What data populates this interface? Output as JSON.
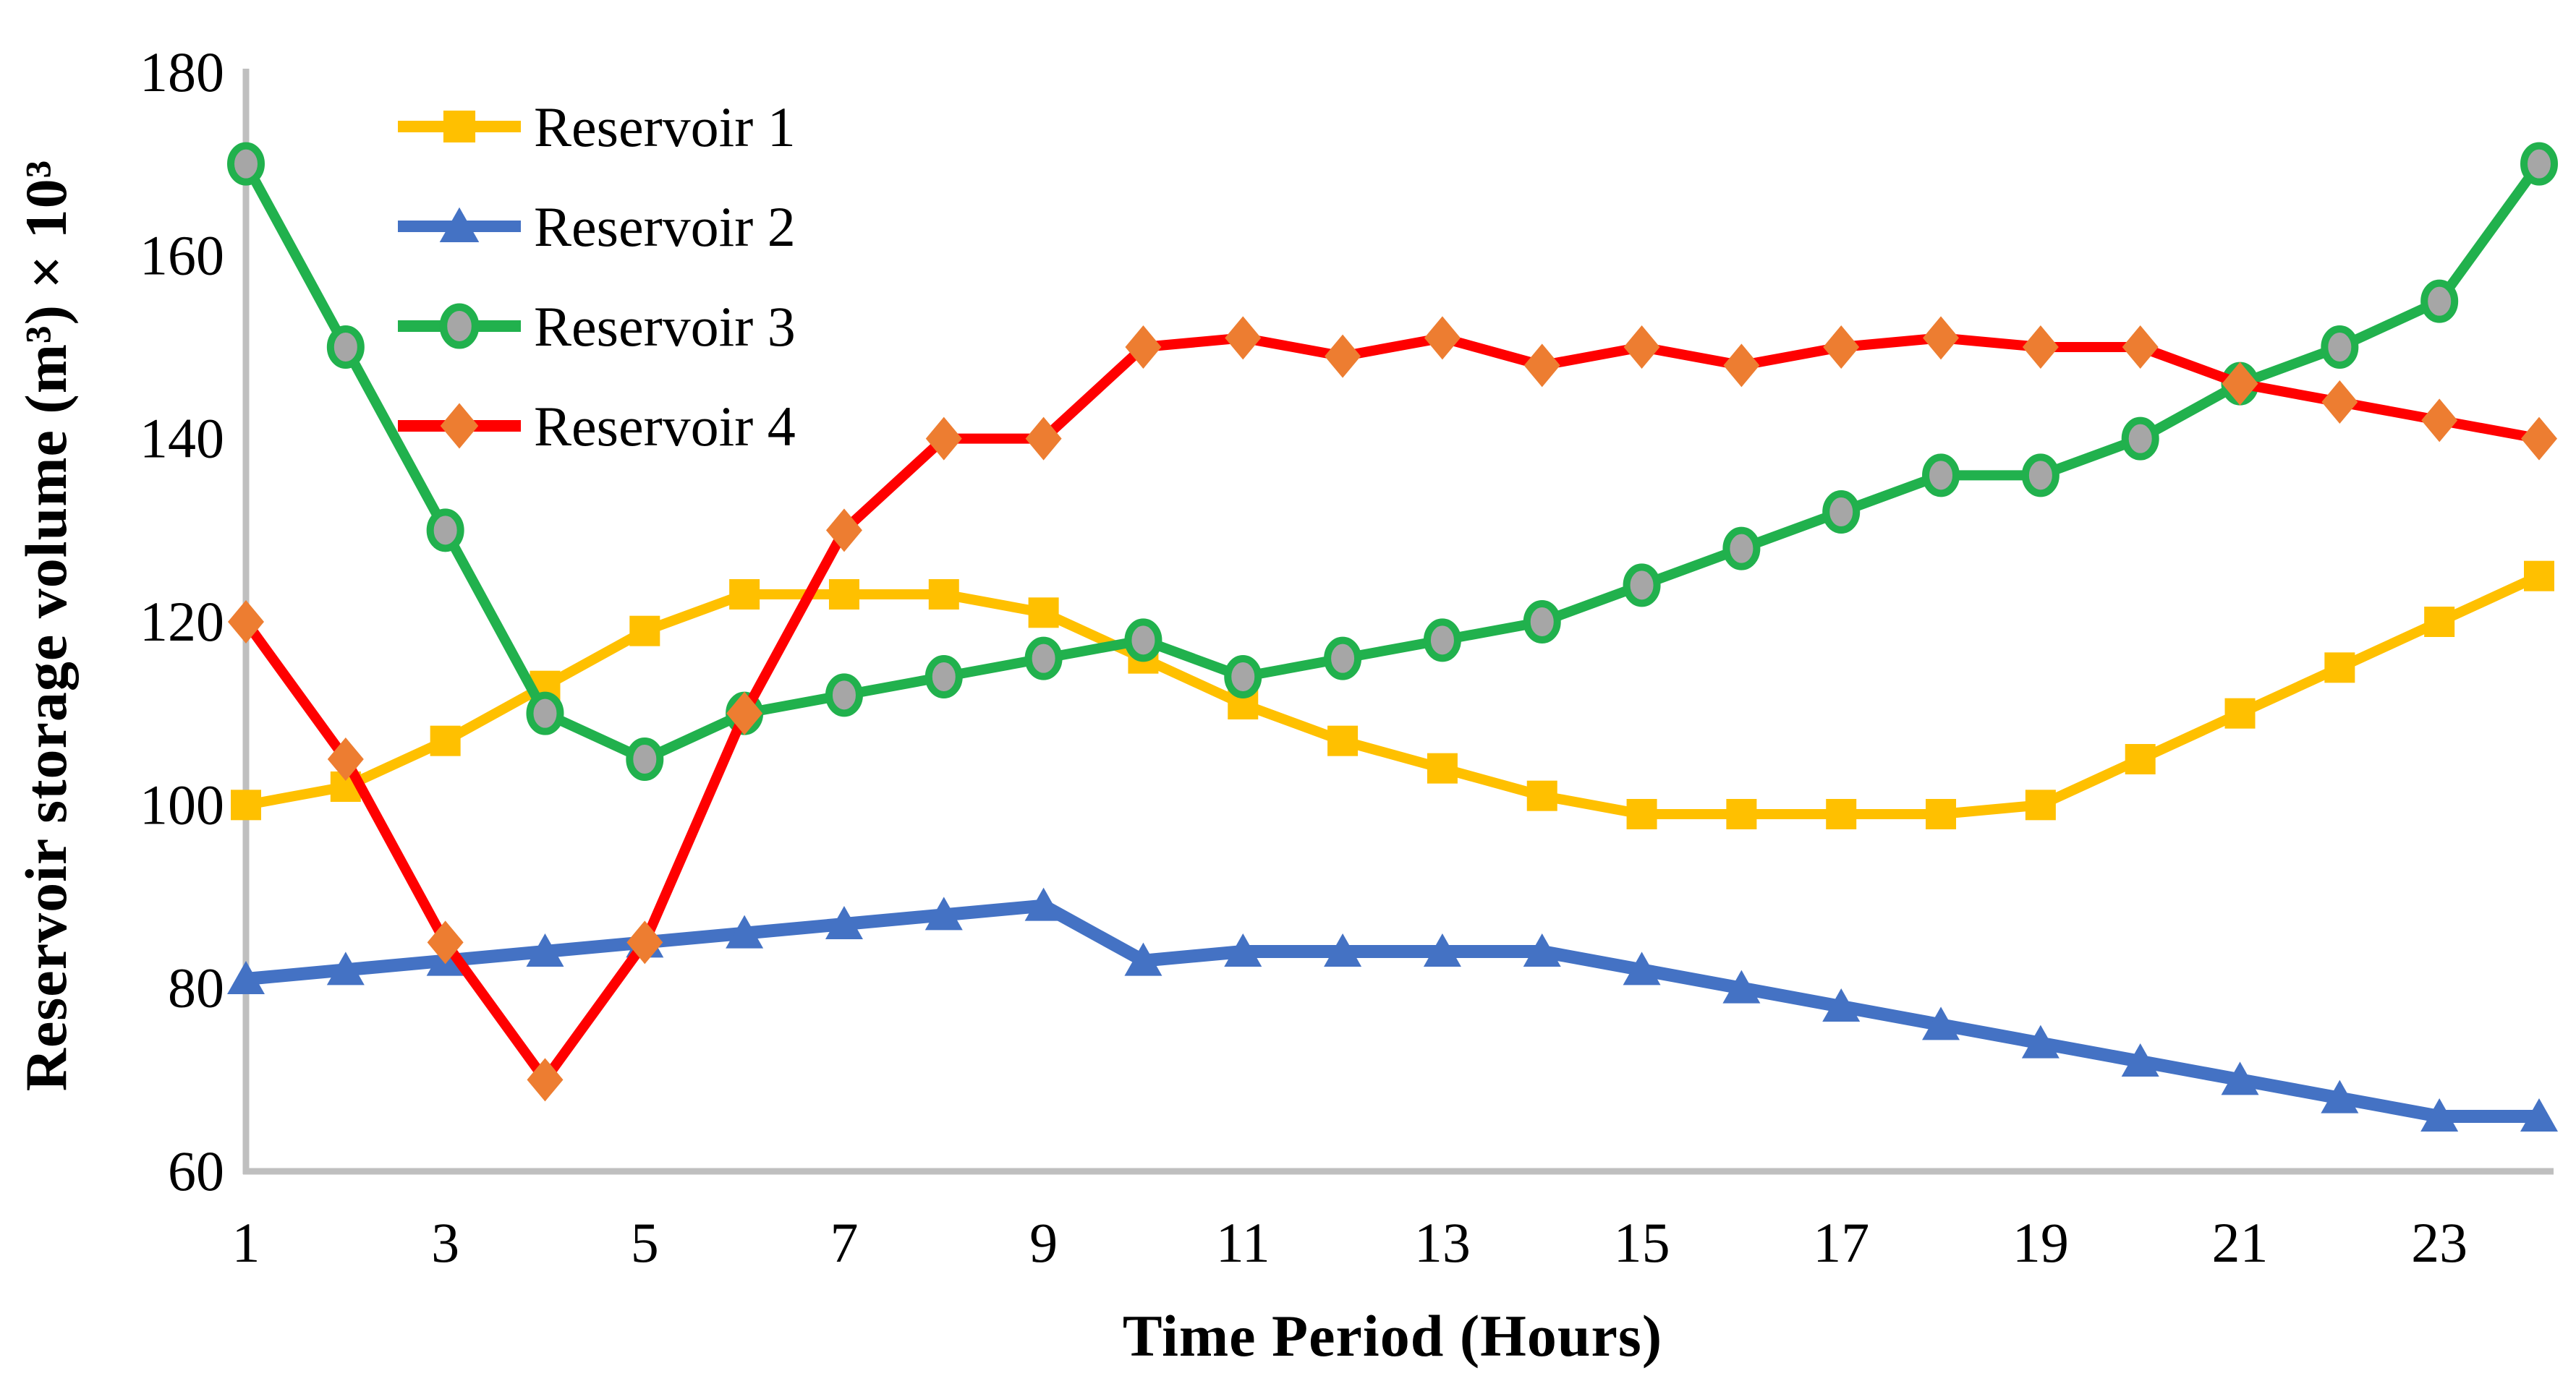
{
  "figure": {
    "background": "#FFFFFF"
  },
  "chart_data": {
    "type": "line",
    "title": "",
    "xlabel": "Time Period (Hours)",
    "ylabel": "Reservoir storage volume (m³) × 10³",
    "x": [
      1,
      2,
      3,
      4,
      5,
      6,
      7,
      8,
      9,
      10,
      11,
      12,
      13,
      14,
      15,
      16,
      17,
      18,
      19,
      20,
      21,
      22,
      23,
      24
    ],
    "x_tick_labels": [
      "1",
      "3",
      "5",
      "7",
      "9",
      "11",
      "13",
      "15",
      "17",
      "19",
      "21",
      "23"
    ],
    "x_ticks_at": [
      1,
      3,
      5,
      7,
      9,
      11,
      13,
      15,
      17,
      19,
      21,
      23
    ],
    "xlim": [
      1,
      24
    ],
    "ylim": [
      60,
      180
    ],
    "y_ticks": [
      60,
      80,
      100,
      120,
      140,
      160,
      180
    ],
    "grid": false,
    "legend_position": "top-left-inside",
    "axis_color": "#BFBFBF",
    "text_color": "#000000",
    "series": [
      {
        "name": "Reservoir 1",
        "color": "#FFC000",
        "marker": "square",
        "marker_color": "#FFC000",
        "marker_border": "none",
        "line_width": 14,
        "values": [
          100,
          102,
          107,
          113,
          119,
          123,
          123,
          123,
          121,
          116,
          111,
          107,
          104,
          101,
          99,
          99,
          99,
          99,
          100,
          105,
          110,
          115,
          120,
          125
        ]
      },
      {
        "name": "Reservoir 2",
        "color": "#4472C4",
        "marker": "triangle",
        "marker_color": "#4472C4",
        "marker_border": "none",
        "line_width": 18,
        "values": [
          81,
          82,
          83,
          84,
          85,
          86,
          87,
          88,
          89,
          83,
          84,
          84,
          84,
          84,
          82,
          80,
          78,
          76,
          74,
          72,
          70,
          68,
          66,
          66
        ]
      },
      {
        "name": "Reservoir 3",
        "color": "#21B14D",
        "marker": "circle",
        "marker_color": "#A6A6A6",
        "marker_border": "#21B14D",
        "line_width": 14,
        "values": [
          170,
          150,
          130,
          110,
          105,
          110,
          112,
          114,
          116,
          118,
          114,
          116,
          118,
          120,
          124,
          128,
          132,
          136,
          136,
          140,
          146,
          150,
          155,
          170
        ]
      },
      {
        "name": "Reservoir 4",
        "color": "#FF0000",
        "marker": "diamond",
        "marker_color": "#ED7D31",
        "marker_border": "none",
        "line_width": 14,
        "values": [
          120,
          105,
          85,
          70,
          85,
          110,
          130,
          140,
          140,
          150,
          151,
          149,
          151,
          148,
          150,
          148,
          150,
          151,
          150,
          150,
          146,
          144,
          142,
          140
        ]
      }
    ]
  }
}
